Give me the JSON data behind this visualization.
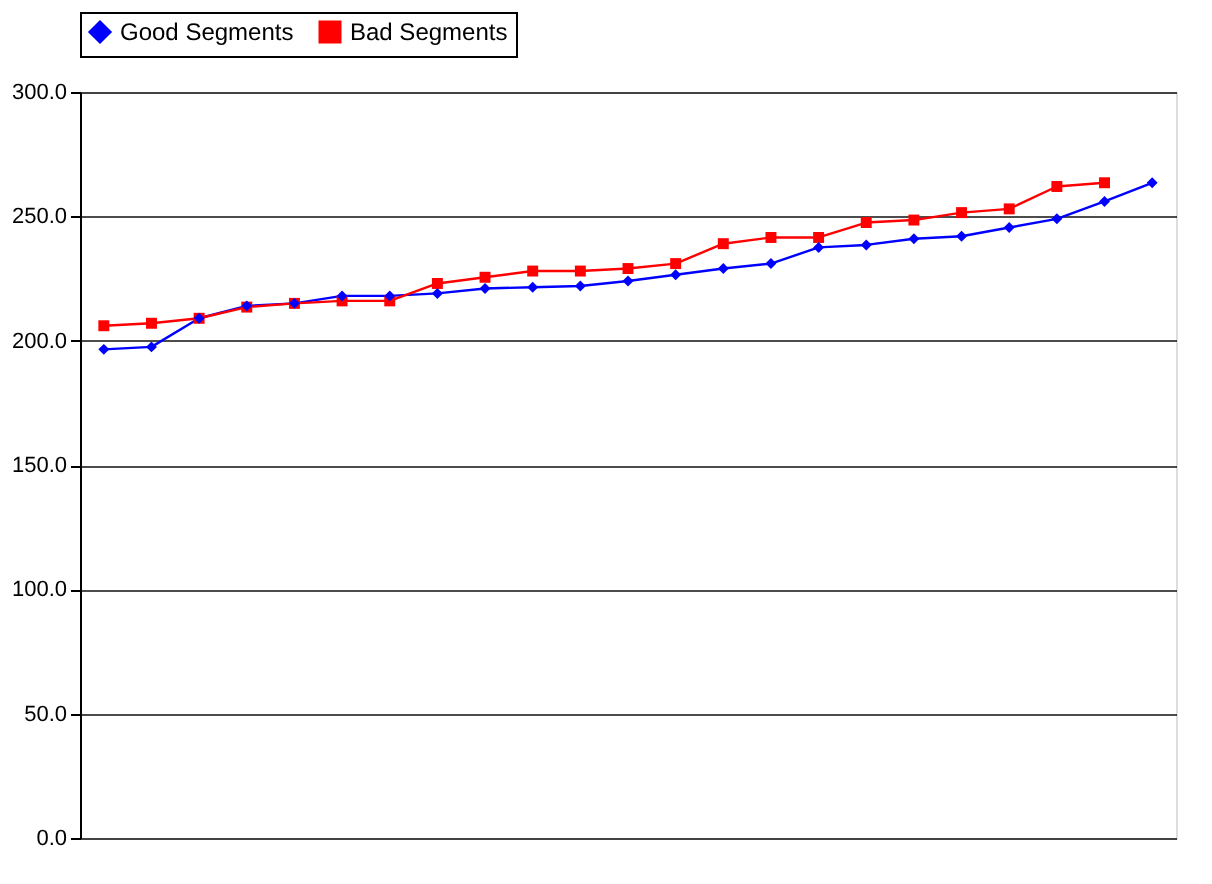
{
  "chart_data": {
    "type": "line",
    "categories": [
      null,
      null,
      null,
      null,
      null,
      null,
      null,
      null,
      null,
      null,
      null,
      null,
      null,
      null,
      null,
      null,
      null,
      null,
      null,
      null,
      null,
      null,
      null
    ],
    "series": [
      {
        "name": "Good Segments",
        "color": "#0000ff",
        "marker": "diamond",
        "values": [
          196.5,
          197.5,
          209,
          214,
          215,
          218,
          218,
          219,
          221,
          221.5,
          222,
          224,
          226.5,
          229,
          231,
          237.5,
          238.5,
          241,
          242,
          245.5,
          249,
          256,
          263.5
        ]
      },
      {
        "name": "Bad Segments",
        "color": "#ff0000",
        "marker": "square",
        "values": [
          206,
          207,
          209,
          213.5,
          215,
          216,
          216,
          223,
          225.5,
          228,
          228,
          229,
          231,
          239,
          241.5,
          241.5,
          247.5,
          248.5,
          251.5,
          253,
          262,
          263.5,
          null
        ]
      }
    ],
    "ylim": [
      0,
      300
    ],
    "yticks": [
      {
        "value": 0,
        "label": "0.0"
      },
      {
        "value": 50,
        "label": "50.0"
      },
      {
        "value": 100,
        "label": "100.0"
      },
      {
        "value": 150,
        "label": "150.0"
      },
      {
        "value": 200,
        "label": "200.0"
      },
      {
        "value": 250,
        "label": "250.0"
      },
      {
        "value": 300,
        "label": "300.0"
      }
    ],
    "grid": "y",
    "legend": "top",
    "tick_labels": "y",
    "line_style": "solid"
  }
}
